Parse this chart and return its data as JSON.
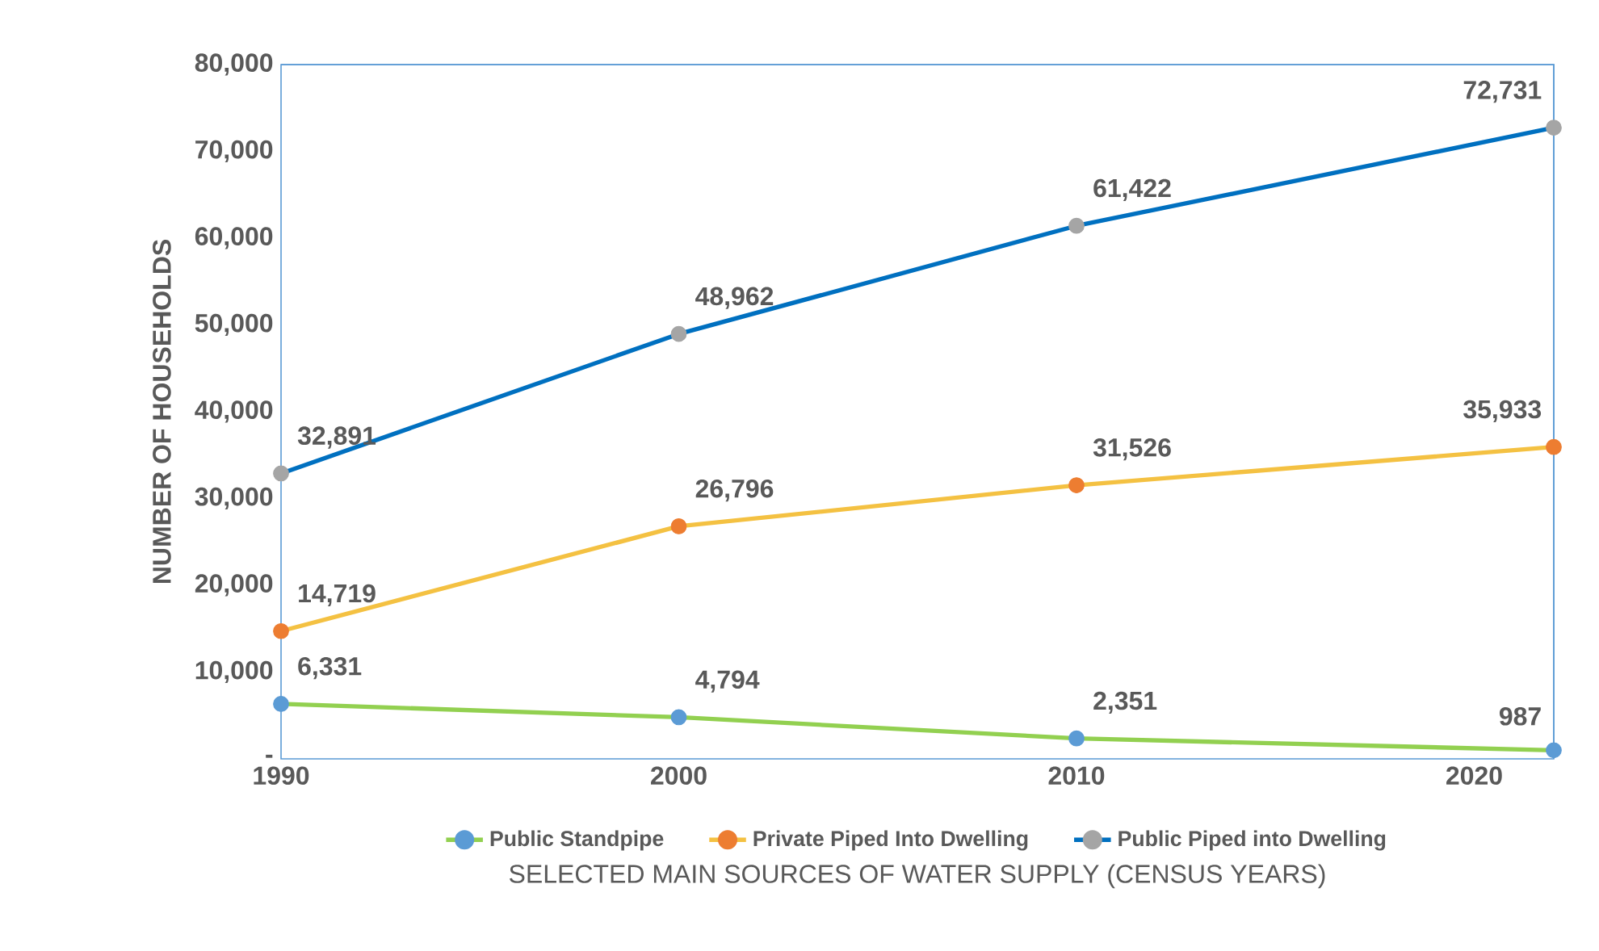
{
  "chart_data": {
    "type": "line",
    "xlabel": "SELECTED MAIN SOURCES OF WATER SUPPLY (CENSUS YEARS)",
    "ylabel": "NUMBER OF HOUSEHOLDS",
    "x": [
      1990,
      2000,
      2010,
      2022
    ],
    "xlim": [
      1990,
      2022
    ],
    "xticks": [
      1990,
      2000,
      2010,
      2020
    ],
    "ylim": [
      0,
      80000
    ],
    "yticks": [
      {
        "value": 0,
        "label": "-"
      },
      {
        "value": 10000,
        "label": "10,000"
      },
      {
        "value": 20000,
        "label": "20,000"
      },
      {
        "value": 30000,
        "label": "30,000"
      },
      {
        "value": 40000,
        "label": "40,000"
      },
      {
        "value": 50000,
        "label": "50,000"
      },
      {
        "value": 60000,
        "label": "60,000"
      },
      {
        "value": 70000,
        "label": "70,000"
      },
      {
        "value": 80000,
        "label": "80,000"
      }
    ],
    "series": [
      {
        "name": "Public Standpipe",
        "color": "#92d050",
        "colors": [
          "#5b9bd5",
          "#5b9bd5",
          "#5b9bd5",
          "#5b9bd5"
        ],
        "values": [
          6331,
          4794,
          2351,
          987
        ],
        "value_labels": [
          "6,331",
          "4,794",
          "2,351",
          "987"
        ]
      },
      {
        "name": "Private Piped Into Dwelling",
        "color": "#f4c142",
        "colors": [
          "#ed7d31",
          "#ed7d31",
          "#ed7d31",
          "#ed7d31"
        ],
        "values": [
          14719,
          26796,
          31526,
          35933
        ],
        "value_labels": [
          "14,719",
          "26,796",
          "31,526",
          "35,933"
        ]
      },
      {
        "name": "Public Piped into Dwelling",
        "color": "#0070c0",
        "colors": [
          "#a5a5a5",
          "#a5a5a5",
          "#a5a5a5",
          "#a5a5a5"
        ],
        "values": [
          32891,
          48962,
          61422,
          72731
        ],
        "value_labels": [
          "32,891",
          "48,962",
          "61,422",
          "72,731"
        ]
      }
    ],
    "marker": "circle",
    "grid": false,
    "legend": "bottom"
  }
}
